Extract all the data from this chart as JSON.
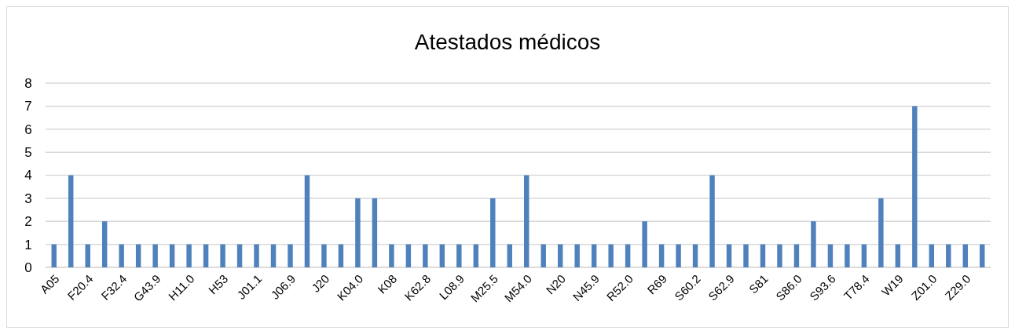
{
  "chart_data": {
    "type": "bar",
    "title": "Atestados médicos",
    "categories": [
      "A05",
      null,
      "F20.4",
      null,
      "F32.4",
      null,
      "G43.9",
      null,
      "H11.0",
      null,
      "H53",
      null,
      "J01.1",
      null,
      "J06.9",
      null,
      "J20",
      null,
      "K04.0",
      null,
      "K08",
      null,
      "K62.8",
      null,
      "L08.9",
      null,
      "M25.5",
      null,
      "M54.0",
      null,
      "N20",
      null,
      "N45.9",
      null,
      "R52.0",
      null,
      "R69",
      null,
      "S60.2",
      null,
      "S62.9",
      null,
      "S81",
      null,
      "S86.0",
      null,
      "S93.6",
      null,
      "T78.4",
      null,
      "W19",
      null,
      "Z01.0",
      null,
      "Z29.0",
      null
    ],
    "values": [
      1,
      4,
      1,
      2,
      1,
      1,
      1,
      1,
      1,
      1,
      1,
      1,
      1,
      1,
      1,
      4,
      1,
      1,
      3,
      3,
      1,
      1,
      1,
      1,
      1,
      1,
      3,
      1,
      4,
      1,
      1,
      1,
      1,
      1,
      1,
      2,
      1,
      1,
      1,
      4,
      1,
      1,
      1,
      1,
      1,
      2,
      1,
      1,
      1,
      3,
      1,
      7,
      1,
      1,
      1,
      1
    ],
    "color": "#4f81bd",
    "ylim": [
      0,
      8
    ],
    "yticks": [
      0,
      1,
      2,
      3,
      4,
      5,
      6,
      7,
      8
    ],
    "grid": "y"
  }
}
